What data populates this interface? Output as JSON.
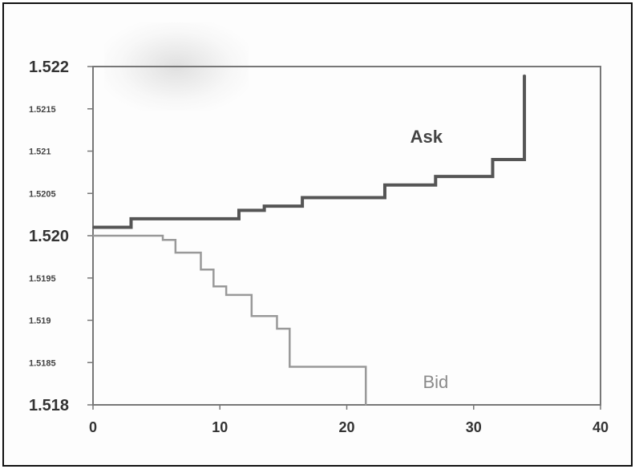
{
  "chart_data": {
    "type": "line",
    "title": "",
    "xlabel": "",
    "ylabel": "",
    "xlim": [
      0,
      40
    ],
    "ylim": [
      1.518,
      1.522
    ],
    "x_ticks": [
      {
        "value": 0,
        "label": "0"
      },
      {
        "value": 10,
        "label": "10"
      },
      {
        "value": 20,
        "label": "20"
      },
      {
        "value": 30,
        "label": "30"
      },
      {
        "value": 40,
        "label": "40"
      }
    ],
    "y_ticks": [
      {
        "value": 1.522,
        "label": "1.522",
        "major": true
      },
      {
        "value": 1.5215,
        "label": "1.5215",
        "major": false
      },
      {
        "value": 1.521,
        "label": "1.521",
        "major": false
      },
      {
        "value": 1.5205,
        "label": "1.5205",
        "major": false
      },
      {
        "value": 1.52,
        "label": "1.520",
        "major": true
      },
      {
        "value": 1.5195,
        "label": "1.5195",
        "major": false
      },
      {
        "value": 1.519,
        "label": "1.519",
        "major": false
      },
      {
        "value": 1.5185,
        "label": "1.5185",
        "major": false
      },
      {
        "value": 1.518,
        "label": "1.518",
        "major": true
      }
    ],
    "grid": false,
    "legend": "none",
    "series": [
      {
        "name": "Ask",
        "step": "post",
        "color": "#555555",
        "points": [
          [
            0,
            1.5201
          ],
          [
            3,
            1.5202
          ],
          [
            11.5,
            1.5203
          ],
          [
            13.5,
            1.52035
          ],
          [
            16.5,
            1.52045
          ],
          [
            23,
            1.5206
          ],
          [
            27,
            1.5207
          ],
          [
            31.5,
            1.5209
          ],
          [
            34,
            1.5219
          ]
        ],
        "end_x": 34
      },
      {
        "name": "Bid",
        "step": "post",
        "color": "#999999",
        "points": [
          [
            0,
            1.52
          ],
          [
            5.5,
            1.51995
          ],
          [
            6.5,
            1.5198
          ],
          [
            8.5,
            1.5196
          ],
          [
            9.5,
            1.5194
          ],
          [
            10.5,
            1.5193
          ],
          [
            12.5,
            1.51905
          ],
          [
            14.5,
            1.5189
          ],
          [
            15.5,
            1.51845
          ],
          [
            21.5,
            1.518
          ]
        ],
        "end_x": 21.5
      }
    ],
    "annotations": [
      {
        "text": "Ask",
        "x": 25,
        "y": 1.5211,
        "series": "Ask"
      },
      {
        "text": "Bid",
        "x": 26,
        "y": 1.5182,
        "series": "Bid"
      }
    ]
  }
}
